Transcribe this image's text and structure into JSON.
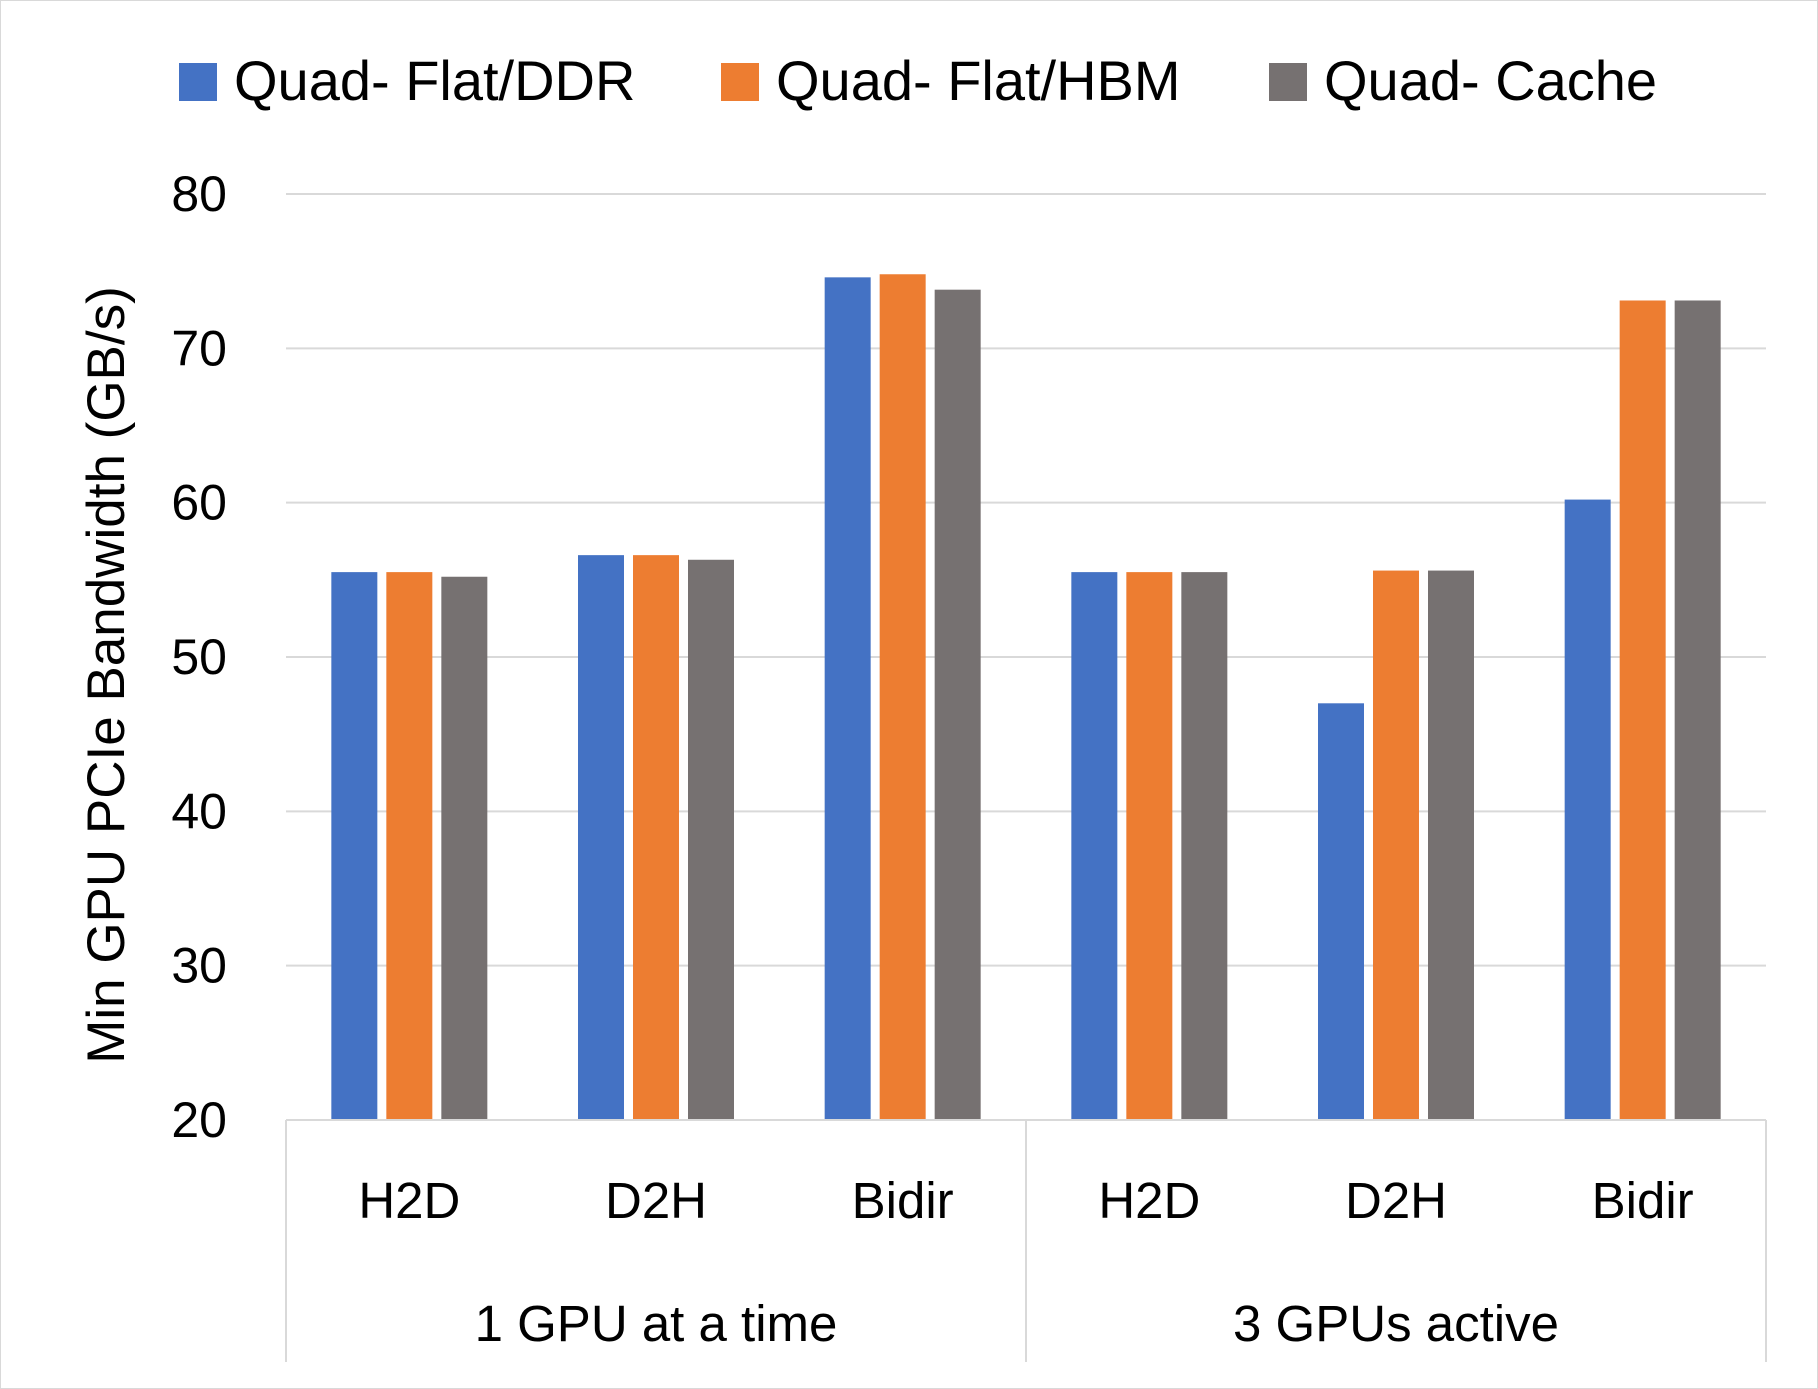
{
  "chart_data": {
    "type": "bar",
    "title": "",
    "xlabel": "",
    "ylabel": "Min GPU PCIe Bandwidth (GB/s)",
    "ylim": [
      20,
      80
    ],
    "yticks": [
      20,
      30,
      40,
      50,
      60,
      70,
      80
    ],
    "grid": true,
    "legend_position": "top",
    "groups": [
      {
        "label": "1 GPU at a time",
        "categories": [
          "H2D",
          "D2H",
          "Bidir"
        ]
      },
      {
        "label": "3 GPUs active",
        "categories": [
          "H2D",
          "D2H",
          "Bidir"
        ]
      }
    ],
    "categories": [
      "H2D",
      "D2H",
      "Bidir",
      "H2D",
      "D2H",
      "Bidir"
    ],
    "series": [
      {
        "name": "Quad- Flat/DDR",
        "color": "#4472c4",
        "values": [
          55.5,
          56.6,
          74.6,
          55.5,
          47.0,
          60.2
        ]
      },
      {
        "name": "Quad- Flat/HBM",
        "color": "#ed7d31",
        "values": [
          55.5,
          56.6,
          74.8,
          55.5,
          55.6,
          73.1
        ]
      },
      {
        "name": "Quad- Cache",
        "color": "#767171",
        "values": [
          55.2,
          56.3,
          73.8,
          55.5,
          55.6,
          73.1
        ]
      }
    ]
  }
}
